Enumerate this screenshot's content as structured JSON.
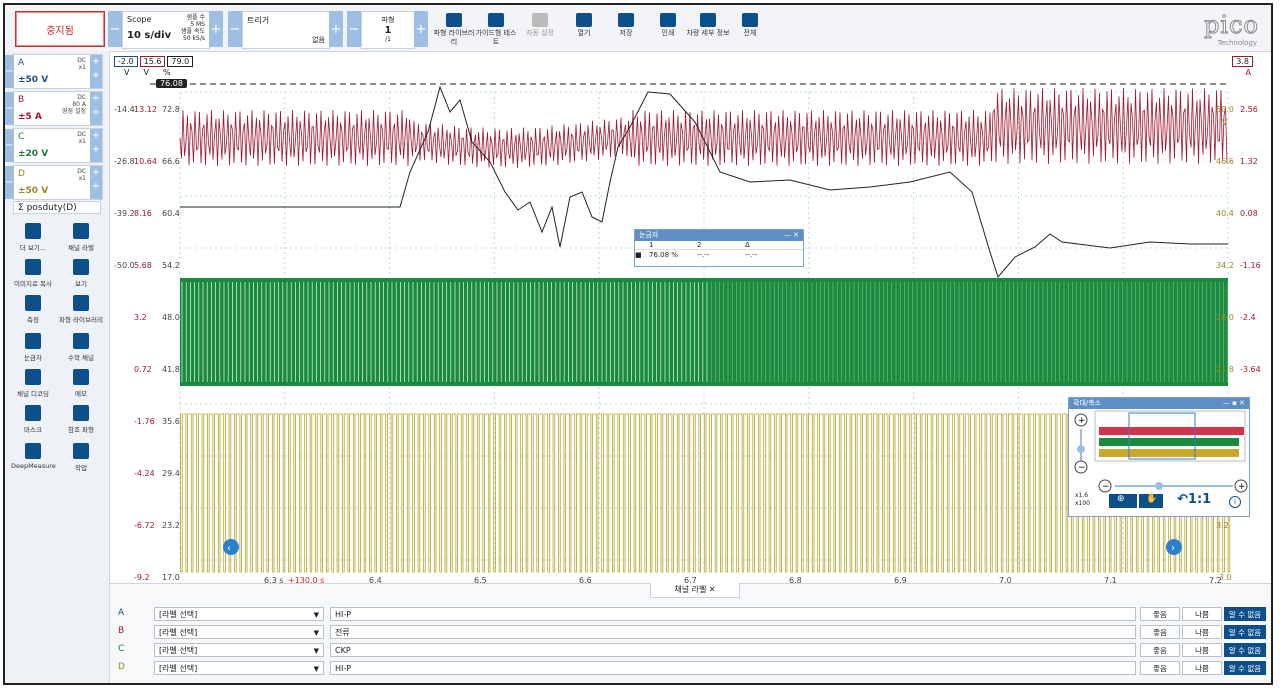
{
  "toolbar": {
    "stop_label": "중지됨",
    "mode": "Scope",
    "timebase": "10 s/div",
    "samples_label": "샘플 수",
    "samples_value": "5 MS",
    "rate_label": "샘플 속도",
    "rate_value": "50 kS/s",
    "trigger_label": "트리거",
    "trigger_value": "없음",
    "waveform_label": "파형",
    "waveform_value": "1",
    "waveform_total": "/1",
    "buttons": [
      {
        "label": "파형 라이브러리",
        "icon": "library-icon"
      },
      {
        "label": "가이드형 테스트",
        "icon": "car-icon"
      },
      {
        "label": "자동 설정",
        "icon": "wand-icon"
      },
      {
        "label": "열기",
        "icon": "folder-icon"
      },
      {
        "label": "저장",
        "icon": "save-icon"
      },
      {
        "label": "인쇄",
        "icon": "print-icon"
      },
      {
        "label": "차량 세부 정보",
        "icon": "clipboard-icon"
      },
      {
        "label": "전체",
        "icon": "fullscreen-icon"
      }
    ],
    "logo": "pico",
    "logo_sub": "Technology"
  },
  "channels": [
    {
      "letter": "A",
      "coupling": "DC",
      "probe": "x1",
      "range": "±50 V",
      "color": "#1a4f8a"
    },
    {
      "letter": "B",
      "coupling": "DC",
      "probe": "80 A",
      "extra": "영점 설정",
      "range": "±5 A",
      "color": "#a01830"
    },
    {
      "letter": "C",
      "coupling": "DC",
      "probe": "x1",
      "range": "±20 V",
      "color": "#1a7a3c"
    },
    {
      "letter": "D",
      "coupling": "DC",
      "probe": "x1",
      "range": "±50 V",
      "color": "#9a8a20"
    }
  ],
  "math_channel": "posduty(D)",
  "tools": [
    {
      "label": "더 보기...",
      "icon": "dots-icon"
    },
    {
      "label": "채널 라벨",
      "icon": "abcd-icon"
    },
    {
      "label": "이미지로 복사",
      "icon": "image-icon"
    },
    {
      "label": "보기",
      "icon": "grid-icon"
    },
    {
      "label": "측정",
      "icon": "compass-icon"
    },
    {
      "label": "파형 라이브러리",
      "icon": "library-icon"
    },
    {
      "label": "눈금자",
      "icon": "ruler-icon"
    },
    {
      "label": "수학 채널",
      "icon": "sigma-icon"
    },
    {
      "label": "채널 디코딩",
      "icon": "decode-icon"
    },
    {
      "label": "메모",
      "icon": "note-icon"
    },
    {
      "label": "마스크",
      "icon": "mask-icon"
    },
    {
      "label": "참조 파형",
      "icon": "reference-icon"
    },
    {
      "label": "DeepMeasure",
      "icon": "deepmeasure-icon"
    },
    {
      "label": "작업",
      "icon": "clapper-icon"
    }
  ],
  "scope": {
    "top_badges": [
      "-2.0",
      "15.6",
      "79.0"
    ],
    "top_units": [
      "V",
      "V",
      "%"
    ],
    "right_badge": "3.8",
    "right_unit": "A",
    "ruler_value": "76.08",
    "axis_rows": [
      {
        "a": "-14.4",
        "b": "13.12",
        "c": "72.8",
        "r1": "50.0",
        "r2": "2.56"
      },
      {
        "a": "-26.8",
        "b": "10.64",
        "c": "66.6",
        "r1": "46.6",
        "r2": "1.32"
      },
      {
        "a": "-39.2",
        "b": "8.16",
        "c": "60.4",
        "r1": "40.4",
        "r2": "0.08"
      },
      {
        "a": "-50.0",
        "b": "5.68",
        "c": "54.2",
        "r1": "34.2",
        "r2": "-1.16"
      },
      {
        "a": "",
        "b": "3.2",
        "c": "48.0",
        "r1": "28.0",
        "r2": "-2.4"
      },
      {
        "a": "",
        "b": "0.72",
        "c": "41.8",
        "r1": "21.8",
        "r2": "-3.64"
      },
      {
        "a": "",
        "b": "-1.76",
        "c": "35.6",
        "r1": "",
        "r2": ""
      },
      {
        "a": "",
        "b": "-4.24",
        "c": "29.4",
        "r1": "",
        "r2": ""
      },
      {
        "a": "",
        "b": "-6.72",
        "c": "23.2",
        "r1": "3.2",
        "r2": ""
      },
      {
        "a": "",
        "b": "-9.2",
        "c": "17.0",
        "r1": "-3.0",
        "r2": ""
      }
    ],
    "right_unit_v": "V",
    "x_ticks": [
      "6.3 s",
      "6.4",
      "6.5",
      "6.6",
      "6.7",
      "6.8",
      "6.9",
      "7.0",
      "7.1",
      "7.2"
    ],
    "x_offset": "+130.0 s",
    "ruler_dialog": {
      "title": "눈금자",
      "cols": [
        "1",
        "2",
        "Δ"
      ],
      "values": [
        "76.08 %",
        "--.--",
        "--.--"
      ]
    },
    "zoom_dialog": {
      "title": "확대/축소",
      "zoom_x": "x1.6",
      "zoom_y": "x100",
      "reset_label": "1:1"
    }
  },
  "channel_labels": {
    "tab": "채널 라벨",
    "select_placeholder": "[라벨 선택]",
    "rows": [
      {
        "letter": "A",
        "text": "HI-P",
        "color": "#1a4f8a"
      },
      {
        "letter": "B",
        "text": "전류",
        "color": "#a01830"
      },
      {
        "letter": "C",
        "text": "CKP",
        "color": "#1a7a3c"
      },
      {
        "letter": "D",
        "text": "HI-P",
        "color": "#9a8a20"
      }
    ],
    "buttons": [
      "좋음",
      "나쁨",
      "알 수 없음"
    ]
  }
}
